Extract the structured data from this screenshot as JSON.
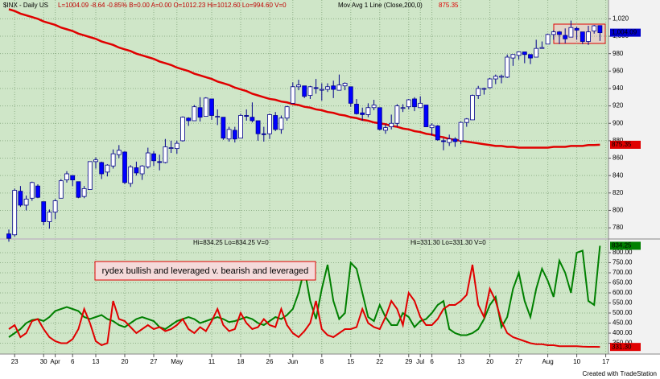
{
  "header": {
    "symbol": "$INX - Daily  US",
    "quote": "L=1004.09  -8.64  -0.85%  B=0.00  A=0.00  O=1012.23  Hi=1012.60  Lo=994.60  V=0",
    "indicator": "Mov Avg 1 Line (Close,200,0)",
    "indicator_value": "875.35",
    "lower_a": "Hi=834.25  Lo=834.25  V=0",
    "lower_b": "Hi=331.30  Lo=331.30  V=0"
  },
  "footer": "Created with TradeStation",
  "chart_data": [
    {
      "type": "candlestick",
      "up_color": "#ffffff",
      "down_color": "#0000ff",
      "last_label": "1,004.09",
      "grid": true,
      "ylim": [
        769,
        1037
      ],
      "yticks": [
        780,
        800,
        820,
        840,
        860,
        880,
        900,
        920,
        940,
        960,
        980,
        {
          "value": 1000,
          "label": "1,000"
        },
        {
          "value": 1020,
          "label": "1,020"
        }
      ],
      "open": [
        773,
        772,
        822,
        806,
        814,
        828,
        810,
        787,
        798,
        814,
        835,
        840,
        833,
        816,
        824,
        856,
        855,
        844,
        851,
        864,
        867,
        831,
        849,
        842,
        850,
        865,
        856,
        855,
        872,
        871,
        880,
        906,
        903,
        918,
        908,
        928,
        908,
        907,
        882,
        892,
        883,
        909,
        907,
        903,
        888,
        888,
        909,
        893,
        906,
        923,
        942,
        943,
        932,
        941,
        938,
        939,
        943,
        938,
        943,
        942,
        922,
        912,
        910,
        918,
        918,
        892,
        896,
        900,
        918,
        919,
        928,
        918,
        921,
        895,
        897,
        880,
        878,
        882,
        880,
        901,
        904,
        932,
        940,
        941,
        951,
        953,
        953,
        975,
        978,
        982,
        979,
        976,
        986,
        991,
        1002,
        1005,
        1001,
        999,
        1009,
        1005,
        994,
        1006,
        1012.23,
        null
      ],
      "high": [
        778,
        825,
        828,
        817,
        833,
        830,
        810,
        801,
        813,
        836,
        845,
        840,
        833,
        828,
        856,
        861,
        856,
        853,
        870,
        875,
        868,
        852,
        856,
        852,
        872,
        868,
        864,
        882,
        880,
        880,
        908,
        907,
        921,
        930,
        930,
        928,
        916,
        907,
        896,
        896,
        911,
        916,
        924,
        903,
        896,
        911,
        913,
        909,
        920,
        947,
        950,
        943,
        943,
        951,
        946,
        946,
        949,
        956,
        947,
        942,
        928,
        918,
        923,
        927,
        918,
        899,
        910,
        922,
        922,
        928,
        930,
        931,
        921,
        900,
        898,
        883,
        887,
        884,
        902,
        906,
        933,
        943,
        941,
        952,
        956,
        956,
        979,
        979,
        982,
        982,
        979,
        996,
        994,
        1003,
        1007,
        1006,
        1009,
        1018,
        1011,
        1005,
        1012,
        1013,
        1012.6,
        null
      ],
      "low": [
        764,
        770,
        804,
        800,
        811,
        814,
        783,
        779,
        790,
        814,
        832,
        828,
        814,
        814,
        824,
        848,
        836,
        839,
        848,
        860,
        830,
        827,
        840,
        835,
        848,
        851,
        846,
        854,
        866,
        865,
        879,
        897,
        903,
        902,
        908,
        904,
        898,
        881,
        879,
        878,
        883,
        903,
        901,
        880,
        879,
        882,
        891,
        888,
        903,
        923,
        938,
        929,
        928,
        934,
        926,
        936,
        929,
        938,
        938,
        919,
        910,
        903,
        907,
        915,
        892,
        888,
        893,
        896,
        913,
        916,
        914,
        918,
        896,
        886,
        880,
        869,
        874,
        873,
        876,
        896,
        904,
        928,
        933,
        940,
        945,
        946,
        952,
        966,
        973,
        969,
        968,
        976,
        986,
        991,
        996,
        991,
        992,
        999,
        996,
        991,
        990,
        1003,
        994.6,
        null
      ],
      "close": [
        768,
        823,
        806,
        813,
        832,
        815,
        787,
        798,
        811,
        834,
        842,
        835,
        815,
        825,
        856,
        858,
        842,
        852,
        865,
        869,
        832,
        850,
        843,
        851,
        866,
        857,
        855,
        873,
        872,
        877,
        907,
        903,
        919,
        907,
        929,
        909,
        908,
        883,
        893,
        882,
        909,
        908,
        903,
        888,
        887,
        910,
        893,
        906,
        919,
        942,
        944,
        931,
        942,
        940,
        939,
        942,
        939,
        944,
        946,
        923,
        911,
        910,
        918,
        921,
        893,
        895,
        900,
        920,
        918,
        927,
        919,
        923,
        896,
        898,
        881,
        879,
        882,
        879,
        901,
        905,
        932,
        940,
        940,
        951,
        954,
        954,
        976,
        979,
        982,
        979,
        975,
        986,
        987,
        1002,
        1005,
        1002,
        997,
        1010,
        1007,
        994,
        1005,
        1012,
        1004.09,
        null
      ],
      "overlay": {
        "color": "#e00000",
        "last_label": "875.35",
        "values": [
          1031,
          1029,
          1026,
          1024,
          1022,
          1020,
          1017,
          1015,
          1013,
          1010,
          1008,
          1006,
          1003,
          1001,
          999,
          997,
          994,
          992,
          990,
          987,
          985,
          983,
          980,
          978,
          976,
          974,
          971,
          969,
          967,
          964,
          962,
          960,
          957,
          955,
          953,
          951,
          948,
          946,
          944,
          941,
          939,
          937,
          934,
          932,
          930,
          928,
          927,
          925,
          924,
          922,
          921,
          919,
          918,
          916,
          915,
          913,
          912,
          910,
          909,
          907,
          906,
          904,
          903,
          901,
          900,
          899,
          897,
          896,
          894,
          893,
          891,
          890,
          888,
          887,
          885,
          884,
          882,
          881,
          880,
          879,
          878,
          877,
          876,
          875,
          874,
          874,
          873,
          873,
          872,
          872,
          872,
          872,
          872,
          872,
          873,
          873,
          873,
          874,
          874,
          874,
          875,
          875,
          875.35,
          null
        ]
      }
    },
    {
      "type": "line",
      "grid": true,
      "annotation": "rydex bullish and leveraged v. bearish and leveraged",
      "ylim": [
        300,
        856
      ],
      "yticks": [
        {
          "value": 350,
          "label": "350.00"
        },
        {
          "value": 400,
          "label": "400.00"
        },
        {
          "value": 450,
          "label": "450.00"
        },
        {
          "value": 500,
          "label": "500.00"
        },
        {
          "value": 550,
          "label": "550.00"
        },
        {
          "value": 600,
          "label": "600.00"
        },
        {
          "value": 650,
          "label": "650.00"
        },
        {
          "value": 700,
          "label": "700.00"
        },
        {
          "value": 750,
          "label": "750.00"
        },
        {
          "value": 800,
          "label": "800.00"
        }
      ],
      "categories": [
        null,
        "23",
        null,
        null,
        null,
        null,
        "30",
        null,
        "Apr",
        null,
        null,
        "6",
        null,
        null,
        null,
        "13",
        null,
        null,
        null,
        null,
        "20",
        null,
        null,
        null,
        null,
        "27",
        null,
        null,
        null,
        "May",
        null,
        null,
        null,
        null,
        null,
        "11",
        null,
        null,
        null,
        null,
        "18",
        null,
        null,
        null,
        null,
        "26",
        null,
        null,
        null,
        "Jun",
        null,
        null,
        null,
        null,
        "8",
        null,
        null,
        null,
        null,
        "15",
        null,
        null,
        null,
        null,
        "22",
        null,
        null,
        null,
        null,
        "29",
        null,
        "Jul",
        null,
        "6",
        null,
        null,
        null,
        null,
        "13",
        null,
        null,
        null,
        null,
        "20",
        null,
        null,
        null,
        null,
        "27",
        null,
        null,
        null,
        null,
        "Aug",
        null,
        null,
        null,
        null,
        "10",
        null,
        null,
        null,
        null,
        "17"
      ],
      "series": [
        {
          "color": "#008000",
          "last_label": "834.25",
          "values": [
            380,
            400,
            420,
            450,
            465,
            470,
            460,
            480,
            510,
            520,
            530,
            520,
            510,
            480,
            470,
            480,
            490,
            470,
            460,
            440,
            430,
            450,
            470,
            480,
            470,
            460,
            430,
            420,
            440,
            460,
            470,
            480,
            470,
            450,
            460,
            470,
            480,
            470,
            455,
            460,
            470,
            480,
            470,
            450,
            440,
            460,
            480,
            470,
            490,
            520,
            600,
            720,
            560,
            470,
            620,
            740,
            560,
            470,
            500,
            750,
            720,
            600,
            480,
            460,
            540,
            480,
            440,
            440,
            500,
            480,
            430,
            460,
            470,
            500,
            540,
            560,
            420,
            400,
            390,
            390,
            400,
            420,
            470,
            540,
            580,
            430,
            480,
            620,
            700,
            560,
            480,
            620,
            720,
            660,
            580,
            760,
            700,
            600,
            800,
            810,
            560,
            540,
            834.25,
            null
          ]
        },
        {
          "color": "#e00000",
          "last_label": "331.30",
          "values": [
            420,
            440,
            380,
            400,
            460,
            470,
            420,
            380,
            360,
            350,
            350,
            370,
            420,
            520,
            450,
            360,
            340,
            350,
            560,
            470,
            460,
            430,
            400,
            420,
            440,
            420,
            430,
            410,
            420,
            440,
            470,
            420,
            400,
            430,
            410,
            460,
            520,
            440,
            410,
            420,
            500,
            450,
            420,
            430,
            470,
            440,
            430,
            520,
            440,
            400,
            380,
            410,
            450,
            560,
            420,
            390,
            380,
            400,
            420,
            420,
            430,
            520,
            450,
            430,
            420,
            480,
            560,
            520,
            440,
            600,
            560,
            480,
            440,
            440,
            470,
            520,
            540,
            540,
            560,
            590,
            740,
            540,
            480,
            620,
            560,
            460,
            400,
            380,
            370,
            360,
            350,
            345,
            345,
            340,
            340,
            335,
            335,
            335,
            335,
            333,
            332,
            332,
            331.3,
            null
          ]
        }
      ]
    }
  ]
}
